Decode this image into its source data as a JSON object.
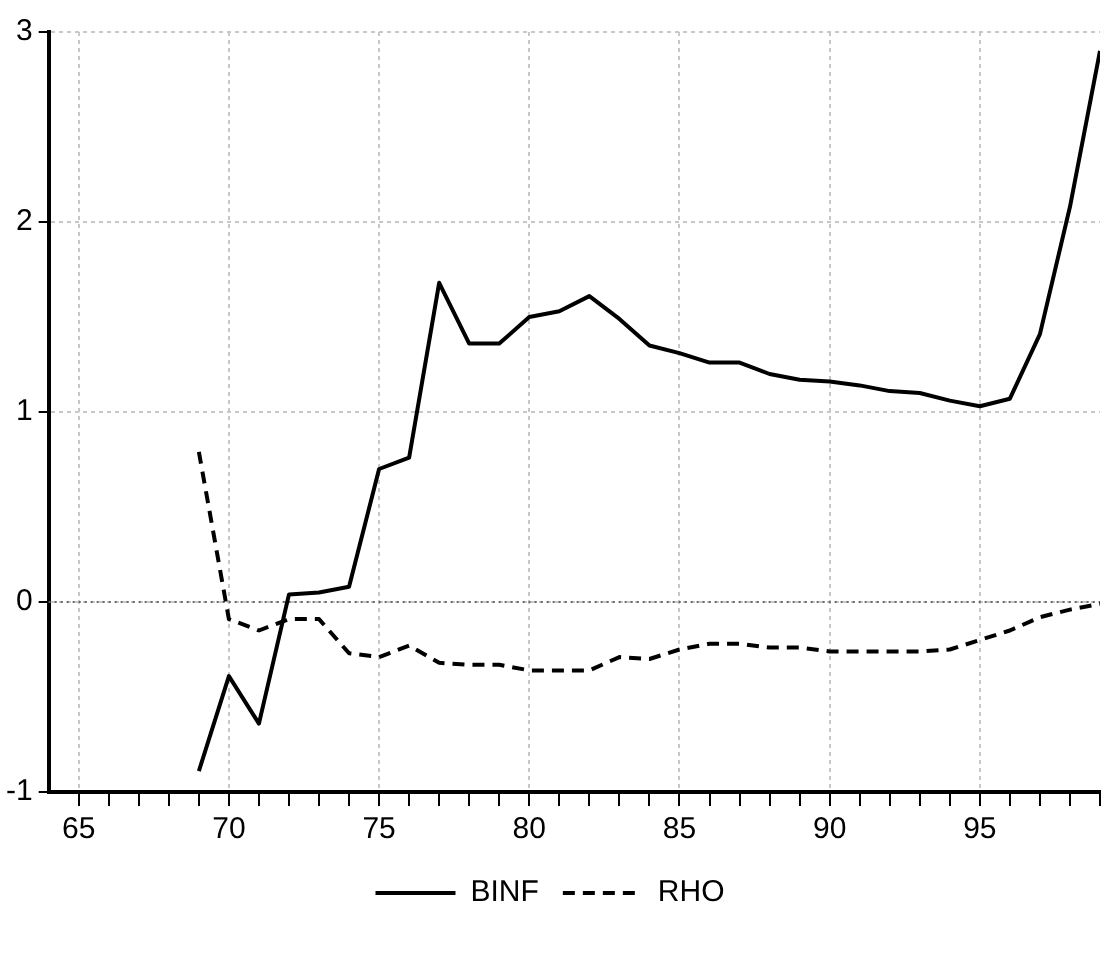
{
  "chart_data": {
    "type": "line",
    "x": [
      69,
      70,
      71,
      72,
      73,
      74,
      75,
      76,
      77,
      78,
      79,
      80,
      81,
      82,
      83,
      84,
      85,
      86,
      87,
      88,
      89,
      90,
      91,
      92,
      93,
      94,
      95,
      96,
      97,
      98,
      99
    ],
    "series": [
      {
        "name": "BINF",
        "color": "#000000",
        "line_style": "solid",
        "values": [
          -0.89,
          -0.39,
          -0.64,
          0.04,
          0.05,
          0.08,
          0.7,
          0.76,
          1.68,
          1.36,
          1.36,
          1.5,
          1.53,
          1.61,
          1.49,
          1.35,
          1.31,
          1.26,
          1.26,
          1.2,
          1.17,
          1.16,
          1.14,
          1.11,
          1.1,
          1.06,
          1.03,
          1.07,
          1.41,
          2.08,
          2.9
        ]
      },
      {
        "name": "RHO",
        "color": "#000000",
        "line_style": "dashed",
        "values": [
          0.79,
          -0.09,
          -0.15,
          -0.09,
          -0.09,
          -0.27,
          -0.29,
          -0.23,
          -0.32,
          -0.33,
          -0.33,
          -0.36,
          -0.36,
          -0.36,
          -0.29,
          -0.3,
          -0.25,
          -0.22,
          -0.22,
          -0.24,
          -0.24,
          -0.26,
          -0.26,
          -0.26,
          -0.26,
          -0.25,
          -0.2,
          -0.15,
          -0.08,
          -0.04,
          -0.01
        ]
      }
    ],
    "xlim": [
      64,
      99
    ],
    "xticks": [
      65,
      {
        "value": 66,
        "label": null
      },
      {
        "value": 67,
        "label": null
      },
      {
        "value": 68,
        "label": null
      },
      {
        "value": 69,
        "label": null
      },
      70,
      {
        "value": 71,
        "label": null
      },
      {
        "value": 72,
        "label": null
      },
      {
        "value": 73,
        "label": null
      },
      {
        "value": 74,
        "label": null
      },
      75,
      {
        "value": 76,
        "label": null
      },
      {
        "value": 77,
        "label": null
      },
      {
        "value": 78,
        "label": null
      },
      {
        "value": 79,
        "label": null
      },
      80,
      {
        "value": 81,
        "label": null
      },
      {
        "value": 82,
        "label": null
      },
      {
        "value": 83,
        "label": null
      },
      {
        "value": 84,
        "label": null
      },
      85,
      {
        "value": 86,
        "label": null
      },
      {
        "value": 87,
        "label": null
      },
      {
        "value": 88,
        "label": null
      },
      {
        "value": 89,
        "label": null
      },
      90,
      {
        "value": 91,
        "label": null
      },
      {
        "value": 92,
        "label": null
      },
      {
        "value": 93,
        "label": null
      },
      {
        "value": 94,
        "label": null
      },
      95,
      {
        "value": 96,
        "label": null
      },
      {
        "value": 97,
        "label": null
      },
      {
        "value": 98,
        "label": null
      },
      {
        "value": 99,
        "label": null
      }
    ],
    "ylim": [
      -1,
      3
    ],
    "yticks": [
      -1,
      0,
      1,
      2,
      3
    ],
    "ref_lines": [
      {
        "axis": "y",
        "value": 0,
        "color": "#666666",
        "line_style": "dotted"
      }
    ],
    "grid": true,
    "legend": "bottom",
    "marker": "none"
  }
}
